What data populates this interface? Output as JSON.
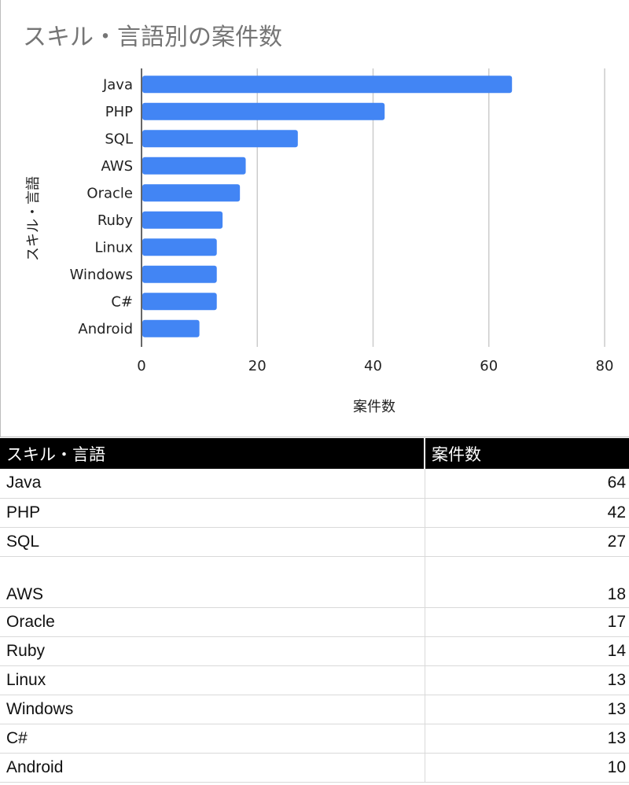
{
  "chart_data": {
    "type": "bar",
    "orientation": "horizontal",
    "title": "スキル・言語別の案件数",
    "xlabel": "案件数",
    "ylabel": "スキル・言語",
    "categories": [
      "Java",
      "PHP",
      "SQL",
      "AWS",
      "Oracle",
      "Ruby",
      "Linux",
      "Windows",
      "C#",
      "Android"
    ],
    "values": [
      64,
      42,
      27,
      18,
      17,
      14,
      13,
      13,
      13,
      10
    ],
    "xlim": [
      0,
      80
    ],
    "xticks": [
      0,
      20,
      40,
      60,
      80
    ],
    "grid": true,
    "legend": "none",
    "bar_color": "#4285f4"
  },
  "table": {
    "headers": [
      "スキル・言語",
      "案件数"
    ],
    "rows": [
      {
        "name": "Java",
        "value": "64"
      },
      {
        "name": "PHP",
        "value": "42"
      },
      {
        "name": "SQL",
        "value": "27"
      },
      {
        "name": "AWS",
        "value": "18"
      },
      {
        "name": "Oracle",
        "value": "17"
      },
      {
        "name": "Ruby",
        "value": "14"
      },
      {
        "name": "Linux",
        "value": "13"
      },
      {
        "name": "Windows",
        "value": "13"
      },
      {
        "name": "C#",
        "value": "13"
      },
      {
        "name": "Android",
        "value": "10"
      }
    ]
  }
}
